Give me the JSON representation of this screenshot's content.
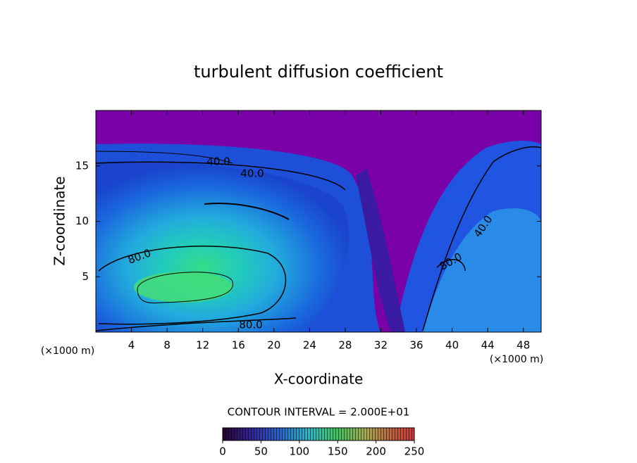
{
  "chart_data": {
    "type": "contour",
    "title": "turbulent diffusion coefficient",
    "xlabel": "X-coordinate",
    "ylabel": "Z-coordinate",
    "x_unit_label": "(×1000 m)",
    "y_unit_label": "(×1000 m)",
    "xlim": [
      0,
      50
    ],
    "ylim": [
      0,
      20
    ],
    "xticks": [
      4,
      8,
      12,
      16,
      20,
      24,
      28,
      32,
      36,
      40,
      44,
      48
    ],
    "yticks": [
      5,
      10,
      15
    ],
    "contour_labels": [
      "40.0",
      "40.0",
      "80.0",
      "80.0",
      "40.0",
      "80.0"
    ],
    "contour_interval_text": "CONTOUR INTERVAL = 2.000E+01",
    "colorbar_lim": [
      0,
      250
    ],
    "colorbar_ticks": [
      0,
      50,
      100,
      150,
      200,
      250
    ]
  }
}
